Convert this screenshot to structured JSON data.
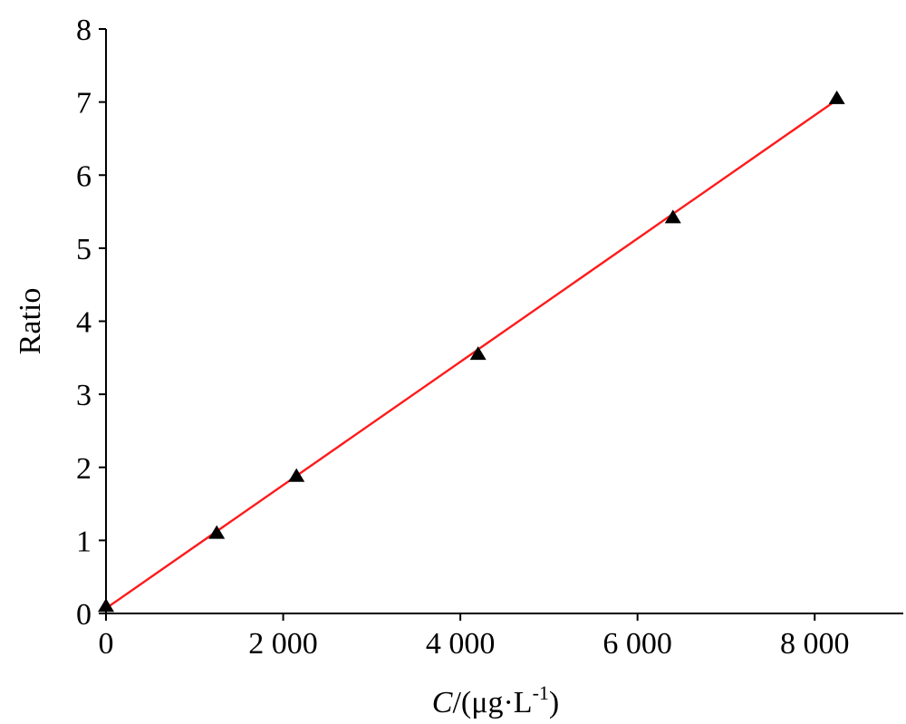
{
  "chart_data": {
    "type": "scatter",
    "x": [
      0,
      1250,
      2150,
      4200,
      6400,
      8250
    ],
    "y": [
      0.1,
      1.1,
      1.88,
      3.55,
      5.42,
      7.05
    ],
    "xlim": [
      0,
      9000
    ],
    "ylim": [
      0,
      8
    ],
    "x_ticks": [
      0,
      2000,
      4000,
      6000,
      8000
    ],
    "x_tick_labels": [
      "0",
      "2 000",
      "4 000",
      "6 000",
      "8 000"
    ],
    "y_ticks": [
      0,
      1,
      2,
      3,
      4,
      5,
      6,
      7,
      8
    ],
    "y_tick_labels": [
      "0",
      "1",
      "2",
      "3",
      "4",
      "5",
      "6",
      "7",
      "8"
    ],
    "xlabel_italic": "C",
    "xlabel_rest": "/(μg·L",
    "xlabel_sup": "-1",
    "xlabel_close": ")",
    "ylabel": "Ratio",
    "marker": "triangle",
    "marker_color": "#000000",
    "fit_line": {
      "x": [
        0,
        8250
      ],
      "y": [
        0.07,
        7.03
      ],
      "color": "#ff1a1a"
    },
    "grid": false,
    "legend": "none"
  }
}
